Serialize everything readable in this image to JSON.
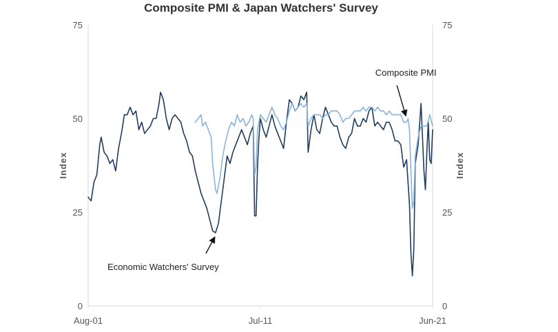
{
  "chart_data": {
    "type": "line",
    "title": "Composite PMI & Japan Watchers' Survey",
    "ylabel_left": "Index",
    "ylabel_right": "Index",
    "ylim": [
      0,
      75
    ],
    "yticks": [
      0,
      25,
      50,
      75
    ],
    "xlim": [
      "2001-08",
      "2021-06"
    ],
    "x_ticks": [
      {
        "label": "Aug-01",
        "date": "2001-08"
      },
      {
        "label": "Jul-11",
        "date": "2011-07"
      },
      {
        "label": "Jun-21",
        "date": "2021-06"
      }
    ],
    "grid": false,
    "series": [
      {
        "name": "Economic Watchers' Survey",
        "color": "#1f3b5e",
        "points": [
          [
            "2001-08",
            29
          ],
          [
            "2001-10",
            28
          ],
          [
            "2001-12",
            33
          ],
          [
            "2002-02",
            35
          ],
          [
            "2002-04",
            43
          ],
          [
            "2002-05",
            45
          ],
          [
            "2002-07",
            41
          ],
          [
            "2002-09",
            40
          ],
          [
            "2002-11",
            38
          ],
          [
            "2003-01",
            39
          ],
          [
            "2003-03",
            36
          ],
          [
            "2003-05",
            42
          ],
          [
            "2003-07",
            46
          ],
          [
            "2003-09",
            51
          ],
          [
            "2003-11",
            51
          ],
          [
            "2004-01",
            53
          ],
          [
            "2004-03",
            51
          ],
          [
            "2004-05",
            52
          ],
          [
            "2004-07",
            47
          ],
          [
            "2004-09",
            49
          ],
          [
            "2004-11",
            46
          ],
          [
            "2005-01",
            47
          ],
          [
            "2005-03",
            48
          ],
          [
            "2005-05",
            50
          ],
          [
            "2005-07",
            50
          ],
          [
            "2005-09",
            54
          ],
          [
            "2005-10",
            57
          ],
          [
            "2005-12",
            55
          ],
          [
            "2006-02",
            50
          ],
          [
            "2006-04",
            47
          ],
          [
            "2006-06",
            50
          ],
          [
            "2006-08",
            51
          ],
          [
            "2006-10",
            50
          ],
          [
            "2006-12",
            49
          ],
          [
            "2007-02",
            46
          ],
          [
            "2007-04",
            44
          ],
          [
            "2007-06",
            41
          ],
          [
            "2007-08",
            40
          ],
          [
            "2007-10",
            36
          ],
          [
            "2007-12",
            33
          ],
          [
            "2008-02",
            30
          ],
          [
            "2008-04",
            28
          ],
          [
            "2008-06",
            26
          ],
          [
            "2008-08",
            23
          ],
          [
            "2008-10",
            20
          ],
          [
            "2008-12",
            19.5
          ],
          [
            "2009-02",
            22
          ],
          [
            "2009-04",
            28
          ],
          [
            "2009-06",
            34
          ],
          [
            "2009-08",
            40
          ],
          [
            "2009-10",
            38
          ],
          [
            "2009-12",
            41
          ],
          [
            "2010-02",
            43
          ],
          [
            "2010-04",
            45
          ],
          [
            "2010-06",
            47
          ],
          [
            "2010-08",
            45
          ],
          [
            "2010-10",
            43
          ],
          [
            "2010-12",
            46
          ],
          [
            "2011-01",
            47
          ],
          [
            "2011-02",
            48
          ],
          [
            "2011-03",
            24
          ],
          [
            "2011-04",
            24
          ],
          [
            "2011-05",
            37
          ],
          [
            "2011-06",
            45
          ],
          [
            "2011-07",
            50
          ],
          [
            "2011-09",
            47
          ],
          [
            "2011-11",
            45
          ],
          [
            "2012-01",
            48
          ],
          [
            "2012-03",
            51
          ],
          [
            "2012-05",
            48
          ],
          [
            "2012-07",
            46
          ],
          [
            "2012-09",
            44
          ],
          [
            "2012-11",
            42
          ],
          [
            "2013-01",
            49
          ],
          [
            "2013-03",
            55
          ],
          [
            "2013-05",
            54
          ],
          [
            "2013-07",
            52
          ],
          [
            "2013-09",
            53
          ],
          [
            "2013-11",
            56
          ],
          [
            "2014-01",
            55
          ],
          [
            "2014-03",
            57
          ],
          [
            "2014-04",
            41
          ],
          [
            "2014-06",
            47
          ],
          [
            "2014-08",
            51
          ],
          [
            "2014-10",
            47
          ],
          [
            "2014-12",
            46
          ],
          [
            "2015-02",
            50
          ],
          [
            "2015-04",
            53
          ],
          [
            "2015-06",
            51
          ],
          [
            "2015-08",
            49
          ],
          [
            "2015-10",
            48
          ],
          [
            "2015-12",
            48
          ],
          [
            "2016-02",
            45
          ],
          [
            "2016-04",
            43
          ],
          [
            "2016-06",
            42
          ],
          [
            "2016-08",
            45
          ],
          [
            "2016-10",
            46
          ],
          [
            "2016-12",
            50
          ],
          [
            "2017-02",
            48
          ],
          [
            "2017-04",
            48
          ],
          [
            "2017-06",
            50
          ],
          [
            "2017-08",
            49
          ],
          [
            "2017-10",
            52
          ],
          [
            "2017-12",
            53
          ],
          [
            "2018-02",
            48
          ],
          [
            "2018-04",
            49
          ],
          [
            "2018-06",
            48
          ],
          [
            "2018-08",
            47
          ],
          [
            "2018-10",
            49
          ],
          [
            "2018-12",
            49
          ],
          [
            "2019-02",
            47
          ],
          [
            "2019-04",
            44
          ],
          [
            "2019-06",
            44
          ],
          [
            "2019-08",
            43
          ],
          [
            "2019-10",
            37
          ],
          [
            "2019-12",
            39
          ],
          [
            "2020-02",
            27
          ],
          [
            "2020-03",
            14
          ],
          [
            "2020-04",
            8
          ],
          [
            "2020-05",
            15
          ],
          [
            "2020-06",
            38
          ],
          [
            "2020-08",
            43
          ],
          [
            "2020-10",
            54
          ],
          [
            "2020-12",
            36
          ],
          [
            "2021-01",
            31
          ],
          [
            "2021-02",
            41
          ],
          [
            "2021-03",
            49
          ],
          [
            "2021-04",
            39
          ],
          [
            "2021-05",
            38
          ],
          [
            "2021-06",
            47
          ]
        ]
      },
      {
        "name": "Composite PMI",
        "color": "#8ab3d9",
        "points": [
          [
            "2007-10",
            49
          ],
          [
            "2007-12",
            50
          ],
          [
            "2008-02",
            51
          ],
          [
            "2008-03",
            48
          ],
          [
            "2008-05",
            49
          ],
          [
            "2008-07",
            47
          ],
          [
            "2008-09",
            45
          ],
          [
            "2008-10",
            38
          ],
          [
            "2008-12",
            31
          ],
          [
            "2009-01",
            30
          ],
          [
            "2009-03",
            34
          ],
          [
            "2009-05",
            40
          ],
          [
            "2009-07",
            44
          ],
          [
            "2009-09",
            47
          ],
          [
            "2009-11",
            49
          ],
          [
            "2010-01",
            48
          ],
          [
            "2010-03",
            51
          ],
          [
            "2010-05",
            49
          ],
          [
            "2010-07",
            50
          ],
          [
            "2010-09",
            48
          ],
          [
            "2010-11",
            49
          ],
          [
            "2011-01",
            51
          ],
          [
            "2011-02",
            50
          ],
          [
            "2011-03",
            35
          ],
          [
            "2011-04",
            37
          ],
          [
            "2011-05",
            47
          ],
          [
            "2011-07",
            51
          ],
          [
            "2011-09",
            50
          ],
          [
            "2011-11",
            49
          ],
          [
            "2012-01",
            51
          ],
          [
            "2012-03",
            53
          ],
          [
            "2012-05",
            51
          ],
          [
            "2012-07",
            50
          ],
          [
            "2012-09",
            48
          ],
          [
            "2012-11",
            47
          ],
          [
            "2013-01",
            49
          ],
          [
            "2013-03",
            52
          ],
          [
            "2013-05",
            54
          ],
          [
            "2013-07",
            52
          ],
          [
            "2013-09",
            53
          ],
          [
            "2013-11",
            54
          ],
          [
            "2014-01",
            53
          ],
          [
            "2014-03",
            54
          ],
          [
            "2014-04",
            48
          ],
          [
            "2014-06",
            50
          ],
          [
            "2014-08",
            51
          ],
          [
            "2014-10",
            51
          ],
          [
            "2014-12",
            51
          ],
          [
            "2015-02",
            50
          ],
          [
            "2015-04",
            51
          ],
          [
            "2015-06",
            51
          ],
          [
            "2015-08",
            52
          ],
          [
            "2015-10",
            52
          ],
          [
            "2015-12",
            52
          ],
          [
            "2016-02",
            51
          ],
          [
            "2016-04",
            49
          ],
          [
            "2016-06",
            50
          ],
          [
            "2016-08",
            50
          ],
          [
            "2016-10",
            51
          ],
          [
            "2016-12",
            52
          ],
          [
            "2017-02",
            52
          ],
          [
            "2017-04",
            52
          ],
          [
            "2017-06",
            53
          ],
          [
            "2017-08",
            52
          ],
          [
            "2017-10",
            53
          ],
          [
            "2017-12",
            53
          ],
          [
            "2018-02",
            52
          ],
          [
            "2018-04",
            53
          ],
          [
            "2018-06",
            52
          ],
          [
            "2018-08",
            52
          ],
          [
            "2018-10",
            51
          ],
          [
            "2018-12",
            52
          ],
          [
            "2019-02",
            51
          ],
          [
            "2019-04",
            51
          ],
          [
            "2019-06",
            51
          ],
          [
            "2019-08",
            51
          ],
          [
            "2019-10",
            49
          ],
          [
            "2019-12",
            49
          ],
          [
            "2020-01",
            50
          ],
          [
            "2020-02",
            47
          ],
          [
            "2020-03",
            36
          ],
          [
            "2020-04",
            26
          ],
          [
            "2020-05",
            28
          ],
          [
            "2020-06",
            40
          ],
          [
            "2020-08",
            45
          ],
          [
            "2020-10",
            48
          ],
          [
            "2020-12",
            48
          ],
          [
            "2021-02",
            48
          ],
          [
            "2021-04",
            51
          ],
          [
            "2021-06",
            48
          ]
        ]
      }
    ],
    "annotations": [
      {
        "text": "Composite  PMI",
        "series": "Composite PMI",
        "target": [
          "2019-12",
          49
        ]
      },
      {
        "text": "Economic Watchers' Survey",
        "series": "Economic Watchers' Survey",
        "target": [
          "2008-12",
          19.5
        ]
      }
    ]
  }
}
